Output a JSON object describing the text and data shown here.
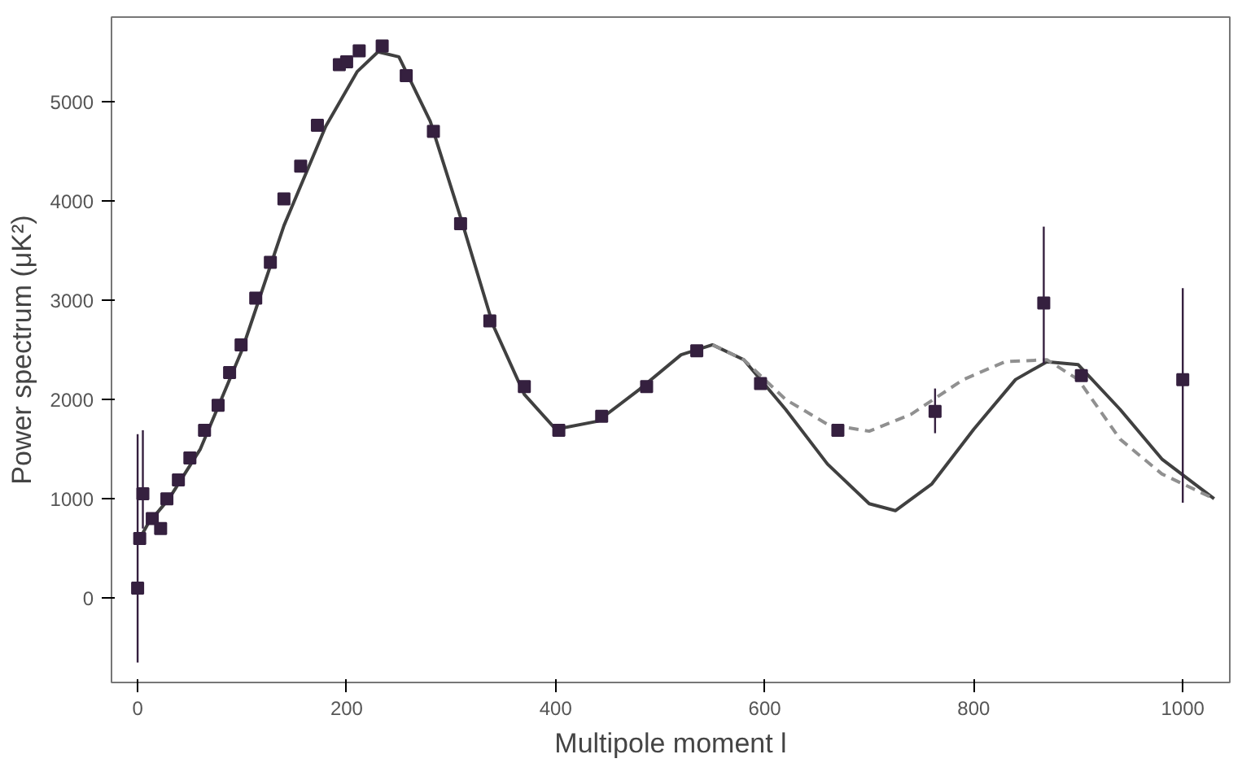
{
  "chart_data": {
    "type": "scatter",
    "xlabel": "Multipole moment l",
    "ylabel": "Power spectrum (μK²)",
    "xlim": [
      -25,
      1045
    ],
    "ylim": [
      -850,
      5850
    ],
    "xticks": [
      0,
      200,
      400,
      600,
      800,
      1000
    ],
    "yticks": [
      0,
      1000,
      2000,
      3000,
      4000,
      5000
    ],
    "grid": false,
    "series": [
      {
        "type": "line",
        "line_style": "solid",
        "marker": "none",
        "color": "#404040",
        "x": [
          2,
          10,
          30,
          60,
          100,
          140,
          180,
          210,
          230,
          250,
          280,
          310,
          340,
          370,
          400,
          440,
          480,
          520,
          550,
          580,
          620,
          660,
          700,
          725,
          760,
          800,
          840,
          870,
          900,
          940,
          980,
          1030
        ],
        "values": [
          600,
          750,
          1000,
          1500,
          2500,
          3750,
          4750,
          5300,
          5500,
          5450,
          4800,
          3800,
          2750,
          2050,
          1700,
          1780,
          2100,
          2450,
          2550,
          2400,
          1900,
          1350,
          950,
          880,
          1150,
          1700,
          2200,
          2380,
          2350,
          1900,
          1400,
          1000
        ]
      },
      {
        "type": "line",
        "line_style": "dashed",
        "marker": "none",
        "color": "#909090",
        "x": [
          550,
          580,
          620,
          660,
          700,
          740,
          790,
          830,
          870,
          900,
          940,
          980,
          1030
        ],
        "values": [
          2550,
          2400,
          2000,
          1750,
          1680,
          1850,
          2200,
          2380,
          2400,
          2200,
          1600,
          1250,
          1000
        ]
      },
      {
        "marker": "square",
        "color": "#35203f",
        "x": [
          0,
          2,
          5,
          14,
          22,
          28,
          39,
          50,
          64,
          77,
          88,
          99,
          113,
          127,
          140,
          156,
          172,
          193,
          200,
          212,
          234,
          257,
          283,
          309,
          337,
          370,
          403,
          444,
          487,
          535,
          596,
          670,
          763,
          867,
          903,
          1000
        ],
        "values": [
          100,
          600,
          1050,
          800,
          700,
          1000,
          1190,
          1410,
          1690,
          1940,
          2270,
          2550,
          3020,
          3380,
          4020,
          4350,
          4760,
          5370,
          5400,
          5510,
          5560,
          5260,
          4700,
          3770,
          2790,
          2130,
          1690,
          1830,
          2130,
          2490,
          2160,
          1690,
          1880,
          2970,
          2240,
          2200
        ],
        "errors": [
          [
            -650,
            1650
          ],
          null,
          [
            700,
            1690
          ],
          null,
          null,
          null,
          null,
          null,
          null,
          null,
          null,
          null,
          null,
          null,
          null,
          null,
          null,
          null,
          null,
          null,
          null,
          null,
          null,
          null,
          null,
          null,
          null,
          null,
          null,
          null,
          null,
          null,
          [
            1660,
            2110
          ],
          [
            2360,
            3740
          ],
          null,
          [
            960,
            3120
          ]
        ]
      }
    ]
  }
}
